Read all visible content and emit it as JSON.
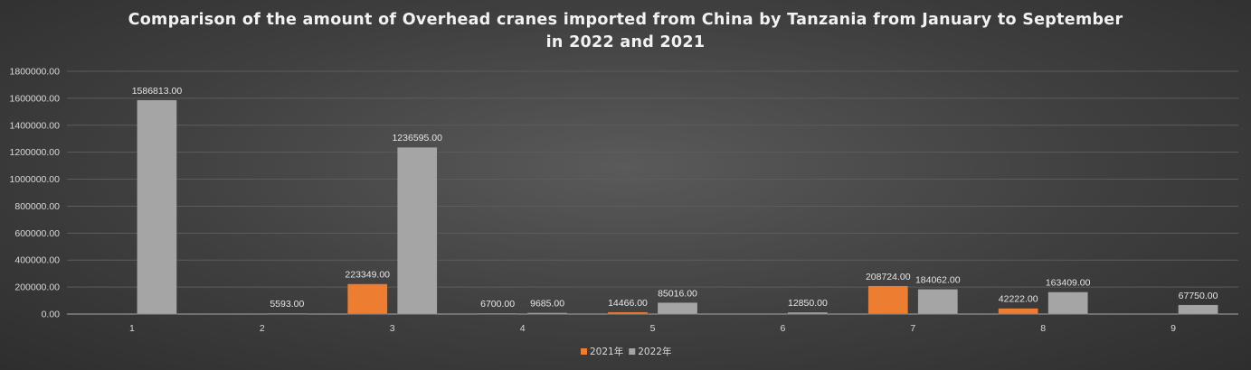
{
  "chart_data": {
    "type": "bar",
    "title_lines": [
      "Comparison of the amount of Overhead cranes imported from China by Tanzania from January to September",
      "in 2022 and 2021"
    ],
    "categories": [
      "1",
      "2",
      "3",
      "4",
      "5",
      "6",
      "7",
      "8",
      "9"
    ],
    "series": [
      {
        "name": "2021年",
        "color": "#ed7d31",
        "values": [
          null,
          null,
          223349.0,
          6700.0,
          14466.0,
          null,
          208724.0,
          42222.0,
          null
        ],
        "labels": [
          "",
          "",
          "223349.00",
          "6700.00",
          "14466.00",
          "",
          "208724.00",
          "42222.00",
          ""
        ]
      },
      {
        "name": "2022年",
        "color": "#a5a5a5",
        "values": [
          1586813.0,
          5593.0,
          1236595.0,
          9685.0,
          85016.0,
          12850.0,
          184062.0,
          163409.0,
          67750.0
        ],
        "labels": [
          "1586813.00",
          "5593.00",
          "1236595.00",
          "9685.00",
          "85016.00",
          "12850.00",
          "184062.00",
          "163409.00",
          "67750.00"
        ]
      }
    ],
    "ylim": [
      0,
      1800000
    ],
    "yticks": [
      0,
      200000,
      400000,
      600000,
      800000,
      1000000,
      1200000,
      1400000,
      1600000,
      1800000
    ],
    "ytick_labels": [
      "0.00",
      "200000.00",
      "400000.00",
      "600000.00",
      "800000.00",
      "1000000.00",
      "1200000.00",
      "1400000.00",
      "1600000.00",
      "1800000.00"
    ],
    "grid": true,
    "legend_position": "bottom"
  }
}
